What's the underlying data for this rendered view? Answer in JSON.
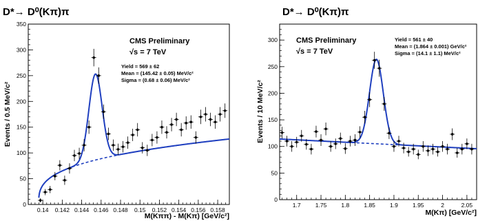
{
  "chart_data": [
    {
      "type": "scatter",
      "title": "D*→ D⁰(Kπ)π",
      "xlabel": "M(Kππ) - M(Kπ) [GeV/c²]",
      "ylabel": "Events / 0.5 MeV/c²",
      "annotations": [
        "CMS Preliminary",
        "√s = 7 TeV",
        "Yield = 569 ± 62",
        "Mean = (145.42 ± 0.05) MeV/c²",
        "Sigma = (0.68 ± 0.06) MeV/c²"
      ],
      "xlim": [
        0.1385,
        0.1592
      ],
      "ylim": [
        0,
        350
      ],
      "xticks": [
        0.14,
        0.142,
        0.144,
        0.146,
        0.148,
        0.15,
        0.152,
        0.154,
        0.156,
        0.158
      ],
      "xtick_labels": [
        "0.14",
        "0.142",
        "0.144",
        "0.146",
        "0.148",
        "0.15",
        "0.152",
        "0.154",
        "0.156",
        "0.158"
      ],
      "yticks": [
        0,
        50,
        100,
        150,
        200,
        250,
        300,
        350
      ],
      "ytick_labels": [
        "0",
        "50",
        "100",
        "150",
        "200",
        "250",
        "300",
        "350"
      ],
      "fit": {
        "mean": 0.14542,
        "sigma": 0.00068,
        "yield": 569,
        "background": "threshold",
        "bkg_threshold": 0.13957,
        "bkg_a": 49,
        "bkg_p": 0.32
      },
      "points": [
        [
          0.13975,
          8,
          4
        ],
        [
          0.14025,
          24,
          6
        ],
        [
          0.14075,
          29,
          7
        ],
        [
          0.14125,
          55,
          8
        ],
        [
          0.14175,
          76,
          10
        ],
        [
          0.14225,
          47,
          9
        ],
        [
          0.14275,
          70,
          10
        ],
        [
          0.14325,
          95,
          11
        ],
        [
          0.14375,
          99,
          11
        ],
        [
          0.14425,
          115,
          12
        ],
        [
          0.14475,
          150,
          13
        ],
        [
          0.14525,
          285,
          17
        ],
        [
          0.14575,
          250,
          16
        ],
        [
          0.14625,
          180,
          14
        ],
        [
          0.14675,
          137,
          12
        ],
        [
          0.14725,
          115,
          11
        ],
        [
          0.14775,
          107,
          11
        ],
        [
          0.14825,
          112,
          11
        ],
        [
          0.14875,
          120,
          12
        ],
        [
          0.14925,
          135,
          12
        ],
        [
          0.14975,
          145,
          13
        ],
        [
          0.15025,
          110,
          11
        ],
        [
          0.15075,
          105,
          11
        ],
        [
          0.15125,
          125,
          12
        ],
        [
          0.15175,
          130,
          12
        ],
        [
          0.15225,
          150,
          13
        ],
        [
          0.15275,
          140,
          12
        ],
        [
          0.15325,
          155,
          13
        ],
        [
          0.15375,
          165,
          13
        ],
        [
          0.15425,
          145,
          13
        ],
        [
          0.15475,
          158,
          13
        ],
        [
          0.15525,
          160,
          13
        ],
        [
          0.15575,
          130,
          12
        ],
        [
          0.15625,
          170,
          14
        ],
        [
          0.15675,
          175,
          14
        ],
        [
          0.15725,
          165,
          13
        ],
        [
          0.15775,
          160,
          13
        ],
        [
          0.15825,
          175,
          14
        ],
        [
          0.15875,
          182,
          14
        ]
      ]
    },
    {
      "type": "scatter",
      "title": "D*→ D⁰(Kπ)π",
      "xlabel": "M(Kπ) [GeV/c²]",
      "ylabel": "Events / 10 MeV/c²",
      "annotations": [
        "CMS Preliminary",
        "√s = 7 TeV",
        "Yield = 561 ± 40",
        "Mean = (1.864 ± 0.001) GeV/c²",
        "Sigma = (14.1 ± 1.1) MeV/c²"
      ],
      "xlim": [
        1.665,
        2.07
      ],
      "ylim": [
        0,
        330
      ],
      "xticks": [
        1.7,
        1.75,
        1.8,
        1.85,
        1.9,
        1.95,
        2.0,
        2.05
      ],
      "xtick_labels": [
        "1.7",
        "1.75",
        "1.8",
        "1.85",
        "1.9",
        "1.95",
        "2",
        "2.05"
      ],
      "yticks": [
        0,
        50,
        100,
        150,
        200,
        250,
        300
      ],
      "ytick_labels": [
        "0",
        "50",
        "100",
        "150",
        "200",
        "250",
        "300"
      ],
      "fit": {
        "mean": 1.864,
        "sigma": 0.0141,
        "yield": 561,
        "background": "linear",
        "bkg_at_xmin": 114,
        "bkg_slope": -45
      },
      "points": [
        [
          1.67,
          126,
          11
        ],
        [
          1.68,
          110,
          10
        ],
        [
          1.69,
          100,
          10
        ],
        [
          1.7,
          108,
          10
        ],
        [
          1.71,
          120,
          11
        ],
        [
          1.72,
          104,
          10
        ],
        [
          1.73,
          95,
          10
        ],
        [
          1.74,
          128,
          11
        ],
        [
          1.75,
          112,
          11
        ],
        [
          1.76,
          133,
          12
        ],
        [
          1.77,
          100,
          10
        ],
        [
          1.78,
          105,
          10
        ],
        [
          1.79,
          115,
          11
        ],
        [
          1.8,
          96,
          10
        ],
        [
          1.81,
          110,
          10
        ],
        [
          1.82,
          112,
          11
        ],
        [
          1.83,
          127,
          11
        ],
        [
          1.84,
          155,
          12
        ],
        [
          1.85,
          188,
          14
        ],
        [
          1.86,
          262,
          16
        ],
        [
          1.87,
          247,
          16
        ],
        [
          1.88,
          180,
          13
        ],
        [
          1.89,
          125,
          11
        ],
        [
          1.9,
          100,
          10
        ],
        [
          1.91,
          110,
          10
        ],
        [
          1.92,
          97,
          10
        ],
        [
          1.93,
          90,
          9
        ],
        [
          1.94,
          95,
          10
        ],
        [
          1.95,
          85,
          9
        ],
        [
          1.96,
          100,
          10
        ],
        [
          1.97,
          92,
          10
        ],
        [
          1.98,
          95,
          10
        ],
        [
          1.99,
          90,
          9
        ],
        [
          2.0,
          100,
          10
        ],
        [
          2.01,
          95,
          10
        ],
        [
          2.02,
          123,
          11
        ],
        [
          2.03,
          88,
          9
        ],
        [
          2.04,
          95,
          10
        ],
        [
          2.05,
          105,
          10
        ],
        [
          2.06,
          95,
          10
        ]
      ]
    }
  ]
}
